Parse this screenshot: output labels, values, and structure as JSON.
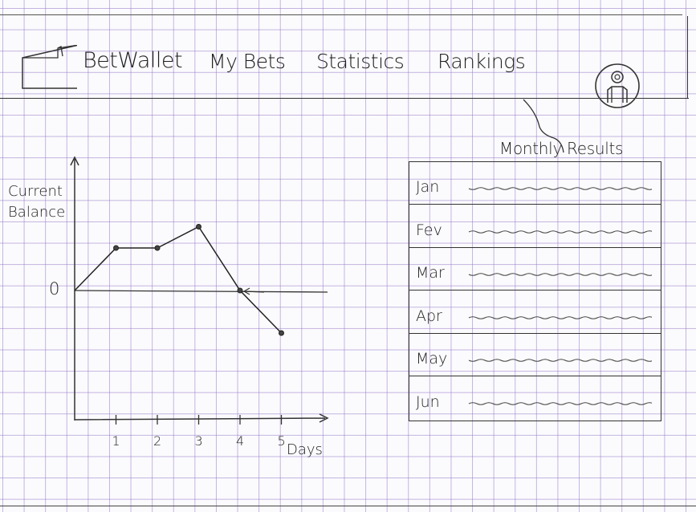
{
  "header": {
    "brand": "BetWallet",
    "nav": [
      {
        "label": "My Bets"
      },
      {
        "label": "Statistics"
      },
      {
        "label": "Rankings"
      }
    ]
  },
  "chart_data": {
    "type": "line",
    "ylabel": "Current Balance",
    "xlabel": "Days",
    "y_tick_labels": [
      "0"
    ],
    "x_tick_labels": [
      "1",
      "2",
      "3",
      "4",
      "5"
    ],
    "x": [
      0,
      1,
      2,
      3,
      4,
      5
    ],
    "values": [
      0,
      1,
      1,
      1.5,
      0,
      -1
    ],
    "grid": true
  },
  "monthly_results": {
    "title": "Monthly Results",
    "months": [
      {
        "label": "Jan"
      },
      {
        "label": "Fev"
      },
      {
        "label": "Mar"
      },
      {
        "label": "Apr"
      },
      {
        "label": "May"
      },
      {
        "label": "Jun"
      }
    ]
  },
  "icons": {
    "logo": "wallet-icon",
    "avatar": "user-avatar-icon"
  }
}
